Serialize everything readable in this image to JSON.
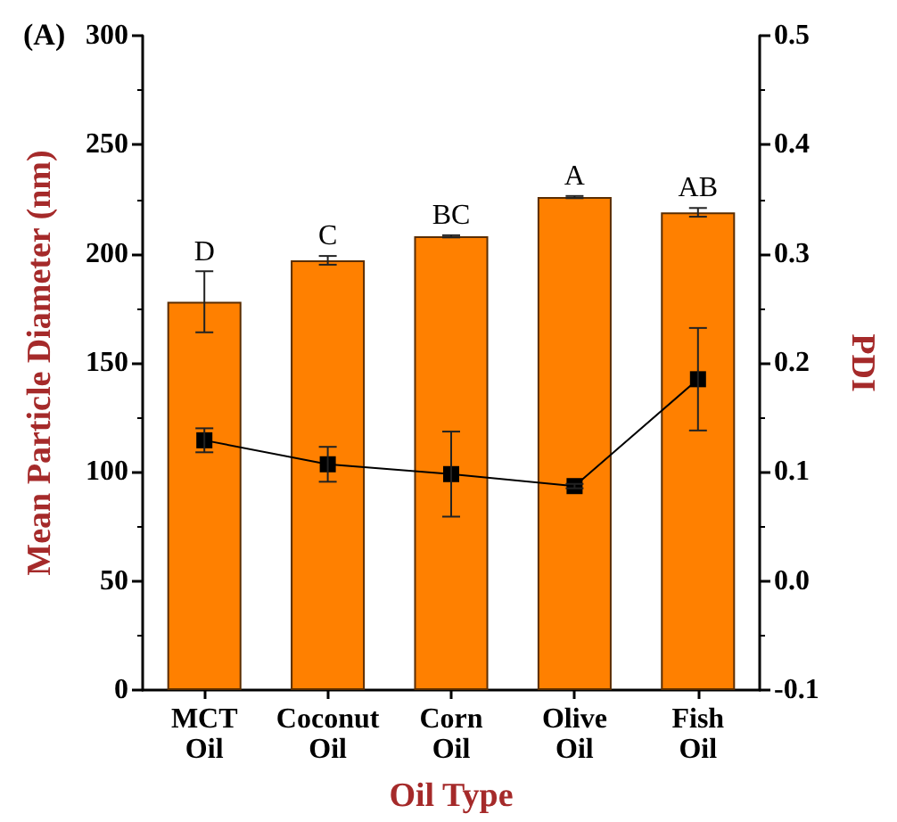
{
  "chart_data": {
    "type": "bar",
    "title": "(A)",
    "xlabel": "Oil Type",
    "ylabel": "Mean Particle Diameter (nm)",
    "y2label": "PDI",
    "categories": [
      "MCT Oil",
      "Coconut Oil",
      "Corn Oil",
      "Olive Oil",
      "Fish Oil"
    ],
    "series": [
      {
        "color": "#ff8000",
        "values": [
          178,
          197,
          208,
          226,
          219
        ],
        "errors": [
          14,
          2,
          0.5,
          0.5,
          2
        ]
      },
      {
        "type": "line",
        "axis": "y2",
        "color": "#000000",
        "marker": "square",
        "line_style": "solid",
        "values": [
          0.129,
          0.107,
          0.098,
          0.087,
          0.185
        ],
        "errors": [
          0.011,
          0.016,
          0.039,
          0.002,
          0.047
        ]
      }
    ],
    "ylim": [
      0,
      300
    ],
    "yticks": [
      0,
      50,
      100,
      150,
      200,
      250,
      300
    ],
    "y2lim": [
      -0.1,
      0.5
    ],
    "y2ticks": [
      -0.1,
      {
        "value": 0,
        "label": "0.0"
      },
      0.1,
      0.2,
      0.3,
      0.4,
      0.5
    ],
    "annotations": [
      {
        "text": "D",
        "x": "MCT Oil",
        "y": 191.5
      },
      {
        "text": "C",
        "x": "Coconut Oil",
        "y": 199
      },
      {
        "text": "BC",
        "x": "Corn Oil",
        "y": 208.5
      },
      {
        "text": "A",
        "x": "Olive Oil",
        "y": 226.5
      },
      {
        "text": "AB",
        "x": "Fish Oil",
        "y": 221
      }
    ],
    "grid": false
  }
}
